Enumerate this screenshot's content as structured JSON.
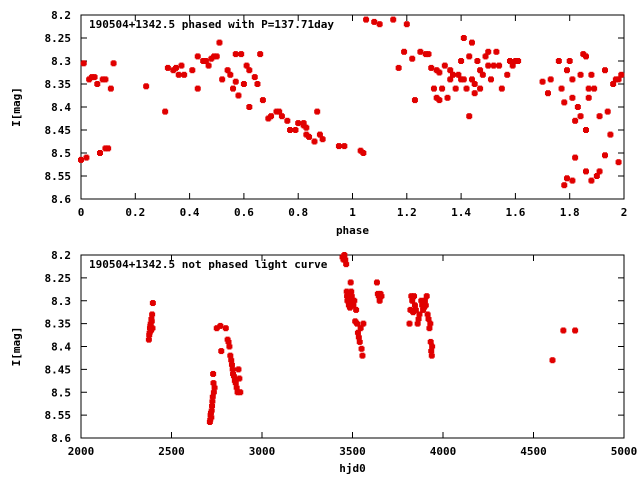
{
  "colors": {
    "points": "#e00000",
    "frame": "#000000",
    "background": "#ffffff"
  },
  "marker_icon": "plus-dot",
  "chart_data": [
    {
      "type": "scatter",
      "title": "190504+1342.5 phased with P=137.71day",
      "xlabel": "phase",
      "ylabel": "I[mag]",
      "xlim": [
        0,
        2
      ],
      "ylim": [
        8.2,
        8.6
      ],
      "y_inverted": true,
      "grid": false,
      "legend": "none",
      "x_ticks": [
        "0",
        "0.2",
        "0.4",
        "0.6",
        "0.8",
        "1",
        "1.2",
        "1.4",
        "1.6",
        "1.8",
        "2"
      ],
      "y_ticks": [
        "8.2",
        "8.25",
        "8.3",
        "8.35",
        "8.4",
        "8.45",
        "8.5",
        "8.55",
        "8.6"
      ],
      "points": [
        [
          0.0,
          8.515
        ],
        [
          0.02,
          8.51
        ],
        [
          0.01,
          8.305
        ],
        [
          0.03,
          8.34
        ],
        [
          0.04,
          8.335
        ],
        [
          0.05,
          8.335
        ],
        [
          0.06,
          8.35
        ],
        [
          0.07,
          8.5
        ],
        [
          0.08,
          8.34
        ],
        [
          0.09,
          8.34
        ],
        [
          0.09,
          8.49
        ],
        [
          0.1,
          8.49
        ],
        [
          0.11,
          8.36
        ],
        [
          0.12,
          8.305
        ],
        [
          0.24,
          8.355
        ],
        [
          0.31,
          8.41
        ],
        [
          0.32,
          8.315
        ],
        [
          0.34,
          8.32
        ],
        [
          0.35,
          8.315
        ],
        [
          0.36,
          8.33
        ],
        [
          0.37,
          8.31
        ],
        [
          0.38,
          8.33
        ],
        [
          0.41,
          8.32
        ],
        [
          0.43,
          8.36
        ],
        [
          0.43,
          8.29
        ],
        [
          0.45,
          8.3
        ],
        [
          0.46,
          8.3
        ],
        [
          0.47,
          8.31
        ],
        [
          0.48,
          8.295
        ],
        [
          0.49,
          8.29
        ],
        [
          0.5,
          8.29
        ],
        [
          0.51,
          8.26
        ],
        [
          0.52,
          8.34
        ],
        [
          0.54,
          8.32
        ],
        [
          0.55,
          8.33
        ],
        [
          0.56,
          8.36
        ],
        [
          0.57,
          8.345
        ],
        [
          0.57,
          8.285
        ],
        [
          0.58,
          8.375
        ],
        [
          0.59,
          8.285
        ],
        [
          0.6,
          8.35
        ],
        [
          0.61,
          8.31
        ],
        [
          0.62,
          8.4
        ],
        [
          0.62,
          8.32
        ],
        [
          0.64,
          8.335
        ],
        [
          0.65,
          8.35
        ],
        [
          0.66,
          8.285
        ],
        [
          0.67,
          8.385
        ],
        [
          0.69,
          8.425
        ],
        [
          0.7,
          8.42
        ],
        [
          0.72,
          8.41
        ],
        [
          0.73,
          8.41
        ],
        [
          0.74,
          8.42
        ],
        [
          0.76,
          8.43
        ],
        [
          0.77,
          8.45
        ],
        [
          0.79,
          8.45
        ],
        [
          0.8,
          8.435
        ],
        [
          0.82,
          8.435
        ],
        [
          0.82,
          8.44
        ],
        [
          0.83,
          8.445
        ],
        [
          0.83,
          8.46
        ],
        [
          0.84,
          8.465
        ],
        [
          0.86,
          8.475
        ],
        [
          0.87,
          8.41
        ],
        [
          0.88,
          8.46
        ],
        [
          0.89,
          8.47
        ],
        [
          0.95,
          8.485
        ],
        [
          0.97,
          8.485
        ],
        [
          1.03,
          8.495
        ],
        [
          1.04,
          8.5
        ],
        [
          1.05,
          8.21
        ],
        [
          1.08,
          8.215
        ],
        [
          1.1,
          8.22
        ],
        [
          1.15,
          8.21
        ],
        [
          1.2,
          8.22
        ],
        [
          1.17,
          8.315
        ],
        [
          1.19,
          8.28
        ],
        [
          1.22,
          8.295
        ],
        [
          1.23,
          8.385
        ],
        [
          1.25,
          8.28
        ],
        [
          1.27,
          8.285
        ],
        [
          1.28,
          8.285
        ],
        [
          1.29,
          8.315
        ],
        [
          1.3,
          8.36
        ],
        [
          1.31,
          8.32
        ],
        [
          1.31,
          8.38
        ],
        [
          1.32,
          8.325
        ],
        [
          1.32,
          8.385
        ],
        [
          1.33,
          8.36
        ],
        [
          1.34,
          8.31
        ],
        [
          1.35,
          8.38
        ],
        [
          1.36,
          8.34
        ],
        [
          1.36,
          8.32
        ],
        [
          1.37,
          8.33
        ],
        [
          1.38,
          8.36
        ],
        [
          1.39,
          8.33
        ],
        [
          1.4,
          8.34
        ],
        [
          1.4,
          8.3
        ],
        [
          1.41,
          8.25
        ],
        [
          1.41,
          8.34
        ],
        [
          1.42,
          8.36
        ],
        [
          1.43,
          8.29
        ],
        [
          1.43,
          8.42
        ],
        [
          1.44,
          8.34
        ],
        [
          1.44,
          8.26
        ],
        [
          1.45,
          8.35
        ],
        [
          1.45,
          8.37
        ],
        [
          1.46,
          8.3
        ],
        [
          1.47,
          8.32
        ],
        [
          1.47,
          8.36
        ],
        [
          1.48,
          8.33
        ],
        [
          1.49,
          8.29
        ],
        [
          1.5,
          8.31
        ],
        [
          1.5,
          8.28
        ],
        [
          1.51,
          8.34
        ],
        [
          1.52,
          8.31
        ],
        [
          1.53,
          8.28
        ],
        [
          1.54,
          8.31
        ],
        [
          1.55,
          8.36
        ],
        [
          1.57,
          8.33
        ],
        [
          1.58,
          8.3
        ],
        [
          1.59,
          8.31
        ],
        [
          1.6,
          8.3
        ],
        [
          1.61,
          8.3
        ],
        [
          1.7,
          8.345
        ],
        [
          1.72,
          8.37
        ],
        [
          1.73,
          8.34
        ],
        [
          1.76,
          8.3
        ],
        [
          1.77,
          8.36
        ],
        [
          1.78,
          8.39
        ],
        [
          1.79,
          8.32
        ],
        [
          1.8,
          8.3
        ],
        [
          1.81,
          8.38
        ],
        [
          1.81,
          8.34
        ],
        [
          1.82,
          8.43
        ],
        [
          1.83,
          8.4
        ],
        [
          1.84,
          8.42
        ],
        [
          1.84,
          8.33
        ],
        [
          1.85,
          8.285
        ],
        [
          1.86,
          8.29
        ],
        [
          1.86,
          8.45
        ],
        [
          1.87,
          8.36
        ],
        [
          1.87,
          8.38
        ],
        [
          1.88,
          8.33
        ],
        [
          1.89,
          8.36
        ],
        [
          1.91,
          8.42
        ],
        [
          1.93,
          8.32
        ],
        [
          1.94,
          8.41
        ],
        [
          1.96,
          8.35
        ],
        [
          1.97,
          8.34
        ],
        [
          1.98,
          8.34
        ],
        [
          1.99,
          8.33
        ],
        [
          1.78,
          8.57
        ],
        [
          1.79,
          8.555
        ],
        [
          1.81,
          8.56
        ],
        [
          1.82,
          8.51
        ],
        [
          1.86,
          8.54
        ],
        [
          1.88,
          8.56
        ],
        [
          1.9,
          8.55
        ],
        [
          1.91,
          8.54
        ],
        [
          1.93,
          8.505
        ],
        [
          1.95,
          8.46
        ],
        [
          1.98,
          8.52
        ]
      ]
    },
    {
      "type": "scatter",
      "title": "190504+1342.5 not phased light curve",
      "xlabel": "hjd0",
      "ylabel": "I[mag]",
      "xlim": [
        2000,
        5000
      ],
      "ylim": [
        8.2,
        8.6
      ],
      "y_inverted": true,
      "grid": false,
      "legend": "none",
      "x_ticks": [
        "2000",
        "2500",
        "3000",
        "3500",
        "4000",
        "4500",
        "5000"
      ],
      "y_ticks": [
        "8.2",
        "8.25",
        "8.3",
        "8.35",
        "8.4",
        "8.45",
        "8.5",
        "8.55",
        "8.6"
      ],
      "points": [
        [
          2375,
          8.385
        ],
        [
          2377,
          8.375
        ],
        [
          2379,
          8.37
        ],
        [
          2381,
          8.36
        ],
        [
          2383,
          8.355
        ],
        [
          2385,
          8.35
        ],
        [
          2387,
          8.365
        ],
        [
          2389,
          8.34
        ],
        [
          2391,
          8.345
        ],
        [
          2393,
          8.33
        ],
        [
          2395,
          8.36
        ],
        [
          2397,
          8.305
        ],
        [
          2712,
          8.565
        ],
        [
          2714,
          8.56
        ],
        [
          2716,
          8.55
        ],
        [
          2718,
          8.545
        ],
        [
          2720,
          8.555
        ],
        [
          2722,
          8.54
        ],
        [
          2724,
          8.53
        ],
        [
          2726,
          8.52
        ],
        [
          2728,
          8.51
        ],
        [
          2730,
          8.46
        ],
        [
          2732,
          8.48
        ],
        [
          2734,
          8.5
        ],
        [
          2738,
          8.49
        ],
        [
          2750,
          8.36
        ],
        [
          2770,
          8.355
        ],
        [
          2775,
          8.41
        ],
        [
          2800,
          8.36
        ],
        [
          2810,
          8.385
        ],
        [
          2815,
          8.39
        ],
        [
          2820,
          8.4
        ],
        [
          2825,
          8.42
        ],
        [
          2830,
          8.43
        ],
        [
          2834,
          8.44
        ],
        [
          2838,
          8.45
        ],
        [
          2840,
          8.46
        ],
        [
          2845,
          8.465
        ],
        [
          2850,
          8.475
        ],
        [
          2855,
          8.48
        ],
        [
          2860,
          8.49
        ],
        [
          2865,
          8.5
        ],
        [
          2870,
          8.45
        ],
        [
          2875,
          8.47
        ],
        [
          2880,
          8.5
        ],
        [
          3445,
          8.205
        ],
        [
          3450,
          8.21
        ],
        [
          3455,
          8.2
        ],
        [
          3460,
          8.21
        ],
        [
          3465,
          8.22
        ],
        [
          3468,
          8.28
        ],
        [
          3470,
          8.29
        ],
        [
          3472,
          8.3
        ],
        [
          3475,
          8.285
        ],
        [
          3478,
          8.295
        ],
        [
          3480,
          8.31
        ],
        [
          3483,
          8.3
        ],
        [
          3486,
          8.315
        ],
        [
          3490,
          8.26
        ],
        [
          3493,
          8.28
        ],
        [
          3496,
          8.29
        ],
        [
          3500,
          8.3
        ],
        [
          3505,
          8.31
        ],
        [
          3510,
          8.3
        ],
        [
          3515,
          8.345
        ],
        [
          3520,
          8.32
        ],
        [
          3525,
          8.35
        ],
        [
          3530,
          8.37
        ],
        [
          3535,
          8.38
        ],
        [
          3540,
          8.39
        ],
        [
          3545,
          8.36
        ],
        [
          3550,
          8.405
        ],
        [
          3555,
          8.42
        ],
        [
          3560,
          8.35
        ],
        [
          3635,
          8.26
        ],
        [
          3640,
          8.285
        ],
        [
          3645,
          8.29
        ],
        [
          3650,
          8.3
        ],
        [
          3655,
          8.285
        ],
        [
          3660,
          8.29
        ],
        [
          3815,
          8.35
        ],
        [
          3820,
          8.32
        ],
        [
          3825,
          8.29
        ],
        [
          3830,
          8.3
        ],
        [
          3835,
          8.325
        ],
        [
          3840,
          8.29
        ],
        [
          3845,
          8.31
        ],
        [
          3850,
          8.32
        ],
        [
          3860,
          8.35
        ],
        [
          3865,
          8.34
        ],
        [
          3870,
          8.33
        ],
        [
          3880,
          8.3
        ],
        [
          3885,
          8.31
        ],
        [
          3890,
          8.32
        ],
        [
          3895,
          8.315
        ],
        [
          3900,
          8.3
        ],
        [
          3905,
          8.31
        ],
        [
          3910,
          8.29
        ],
        [
          3915,
          8.33
        ],
        [
          3920,
          8.34
        ],
        [
          3925,
          8.36
        ],
        [
          3930,
          8.35
        ],
        [
          3932,
          8.39
        ],
        [
          3935,
          8.41
        ],
        [
          3938,
          8.42
        ],
        [
          3940,
          8.4
        ],
        [
          4605,
          8.43
        ],
        [
          4665,
          8.365
        ],
        [
          4730,
          8.365
        ]
      ]
    }
  ]
}
